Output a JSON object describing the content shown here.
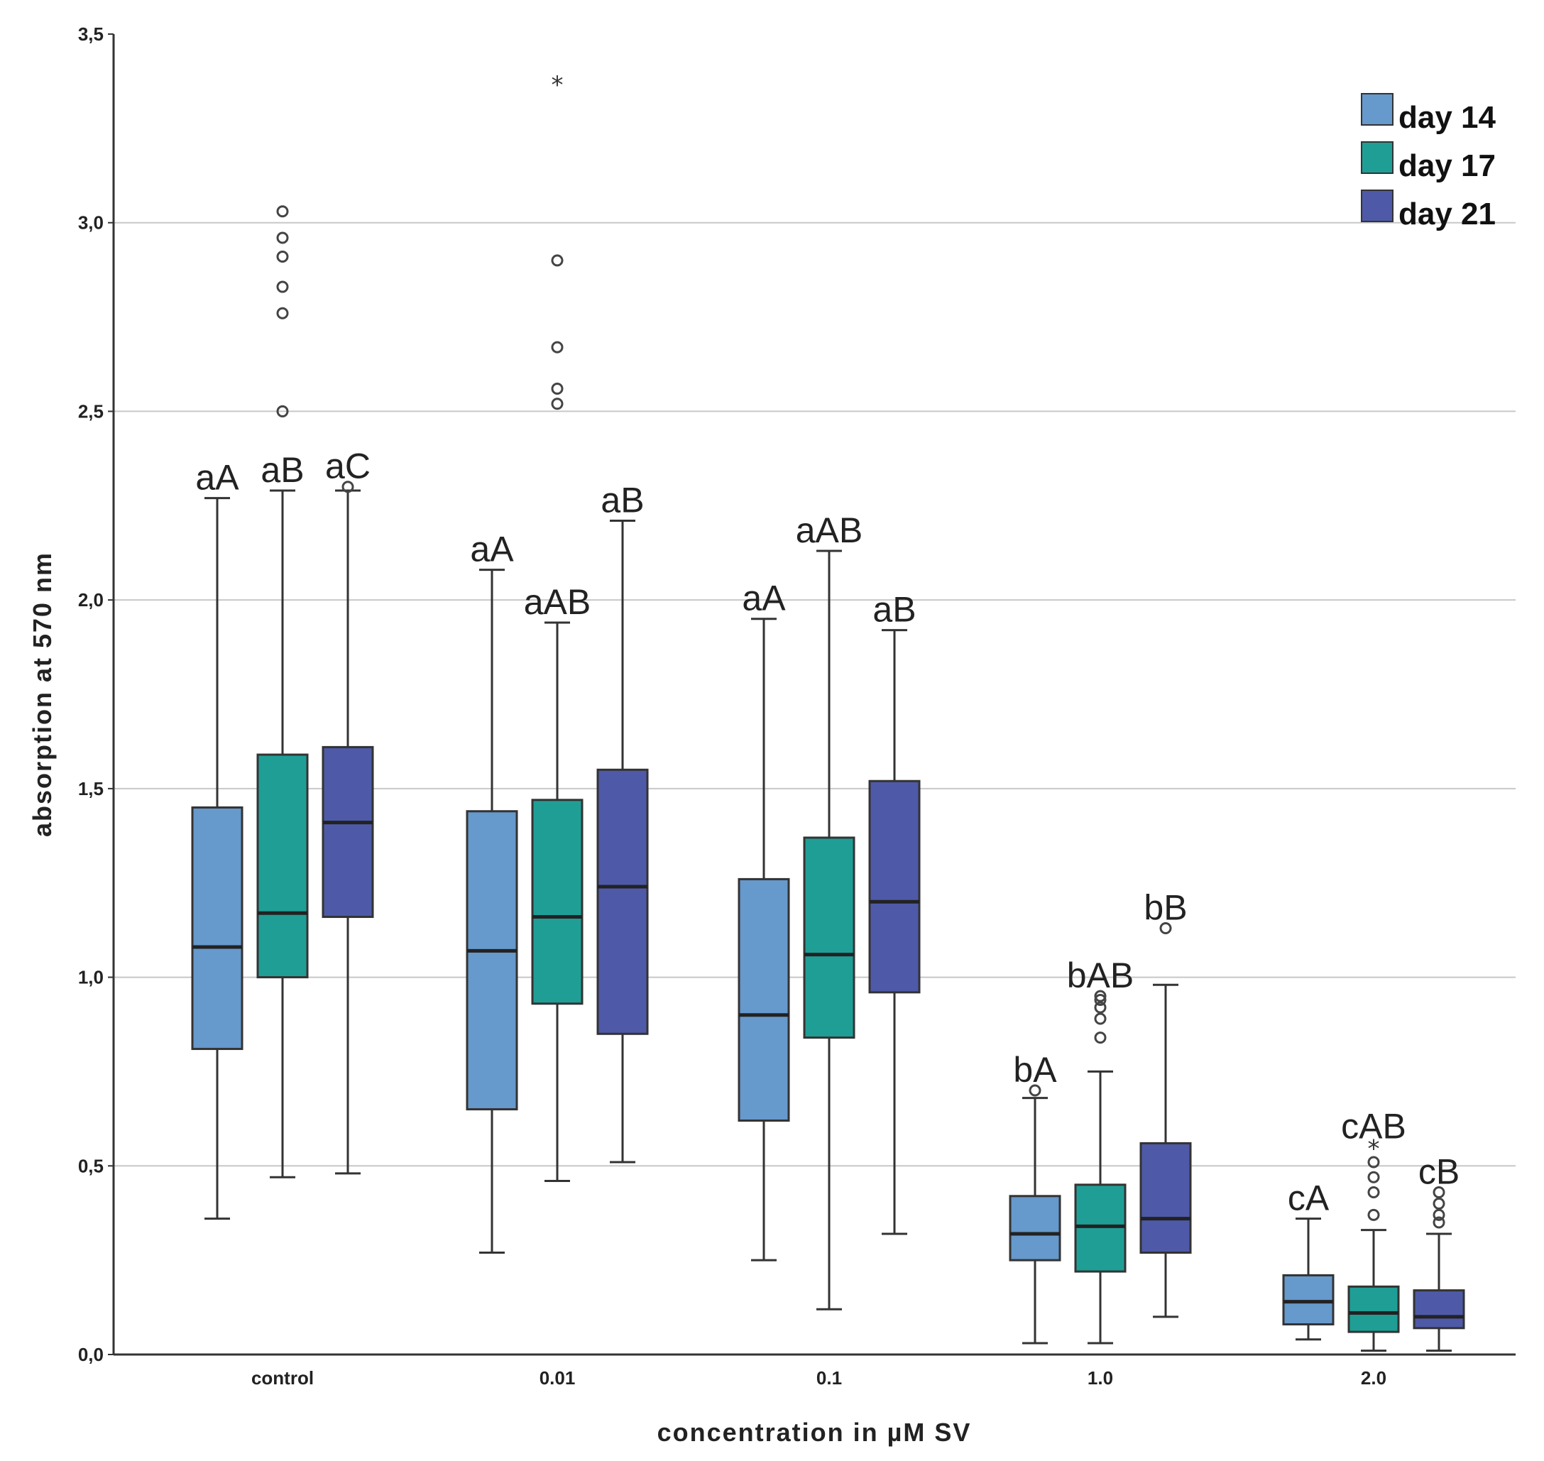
{
  "chart_data": {
    "type": "boxplot",
    "title": "",
    "xlabel": "concentration in µM SV",
    "ylabel": "absorption at 570 nm",
    "ylim": [
      0,
      3.5
    ],
    "yticks": [
      "0,0",
      "0,5",
      "1,0",
      "1,5",
      "2,0",
      "2,5",
      "3,0",
      "3,5"
    ],
    "grid": "horizontal",
    "legend_position": "top-right",
    "categories": [
      "control",
      "0.01",
      "0.1",
      "1.0",
      "2.0"
    ],
    "series": [
      {
        "name": "day 14",
        "color": "#6699cc",
        "boxes": [
          {
            "min": 0.36,
            "q1": 0.81,
            "median": 1.08,
            "q3": 1.45,
            "max": 2.27,
            "outliers": [],
            "extremes": [],
            "label": "aA"
          },
          {
            "min": 0.27,
            "q1": 0.65,
            "median": 1.07,
            "q3": 1.44,
            "max": 2.08,
            "outliers": [],
            "extremes": [],
            "label": "aA"
          },
          {
            "min": 0.25,
            "q1": 0.62,
            "median": 0.9,
            "q3": 1.26,
            "max": 1.95,
            "outliers": [],
            "extremes": [],
            "label": "aA"
          },
          {
            "min": 0.03,
            "q1": 0.25,
            "median": 0.32,
            "q3": 0.42,
            "max": 0.68,
            "outliers": [
              0.7
            ],
            "extremes": [],
            "label": "bA"
          },
          {
            "min": 0.04,
            "q1": 0.08,
            "median": 0.14,
            "q3": 0.21,
            "max": 0.36,
            "outliers": [],
            "extremes": [],
            "label": "cA"
          }
        ]
      },
      {
        "name": "day 17",
        "color": "#1f9e96",
        "boxes": [
          {
            "min": 0.47,
            "q1": 1.0,
            "median": 1.17,
            "q3": 1.59,
            "max": 2.29,
            "outliers": [
              2.5,
              2.76,
              2.83,
              2.91,
              2.96,
              3.03
            ],
            "extremes": [],
            "label": "aB"
          },
          {
            "min": 0.46,
            "q1": 0.93,
            "median": 1.16,
            "q3": 1.47,
            "max": 1.94,
            "outliers": [
              2.52,
              2.56,
              2.67,
              2.9
            ],
            "extremes": [
              3.37
            ],
            "label": "aAB"
          },
          {
            "min": 0.12,
            "q1": 0.84,
            "median": 1.06,
            "q3": 1.37,
            "max": 2.13,
            "outliers": [],
            "extremes": [],
            "label": "aAB"
          },
          {
            "min": 0.03,
            "q1": 0.22,
            "median": 0.34,
            "q3": 0.45,
            "max": 0.75,
            "outliers": [
              0.84,
              0.89,
              0.92,
              0.94,
              0.95
            ],
            "extremes": [],
            "label": "bAB"
          },
          {
            "min": 0.01,
            "q1": 0.06,
            "median": 0.11,
            "q3": 0.18,
            "max": 0.33,
            "outliers": [
              0.37,
              0.43,
              0.47,
              0.51
            ],
            "extremes": [
              0.55
            ],
            "label": "cAB"
          }
        ]
      },
      {
        "name": "day 21",
        "color": "#4e5aa8",
        "boxes": [
          {
            "min": 0.48,
            "q1": 1.16,
            "median": 1.41,
            "q3": 1.61,
            "max": 2.29,
            "outliers": [
              2.3
            ],
            "extremes": [],
            "label": "aC"
          },
          {
            "min": 0.51,
            "q1": 0.85,
            "median": 1.24,
            "q3": 1.55,
            "max": 2.21,
            "outliers": [],
            "extremes": [],
            "label": "aB"
          },
          {
            "min": 0.32,
            "q1": 0.96,
            "median": 1.2,
            "q3": 1.52,
            "max": 1.92,
            "outliers": [],
            "extremes": [],
            "label": "aB"
          },
          {
            "min": 0.1,
            "q1": 0.27,
            "median": 0.36,
            "q3": 0.56,
            "max": 0.98,
            "outliers": [
              1.13
            ],
            "extremes": [],
            "label": "bB"
          },
          {
            "min": 0.01,
            "q1": 0.07,
            "median": 0.1,
            "q3": 0.17,
            "max": 0.32,
            "outliers": [
              0.35,
              0.37,
              0.4,
              0.43
            ],
            "extremes": [],
            "label": "cB"
          }
        ]
      }
    ]
  }
}
